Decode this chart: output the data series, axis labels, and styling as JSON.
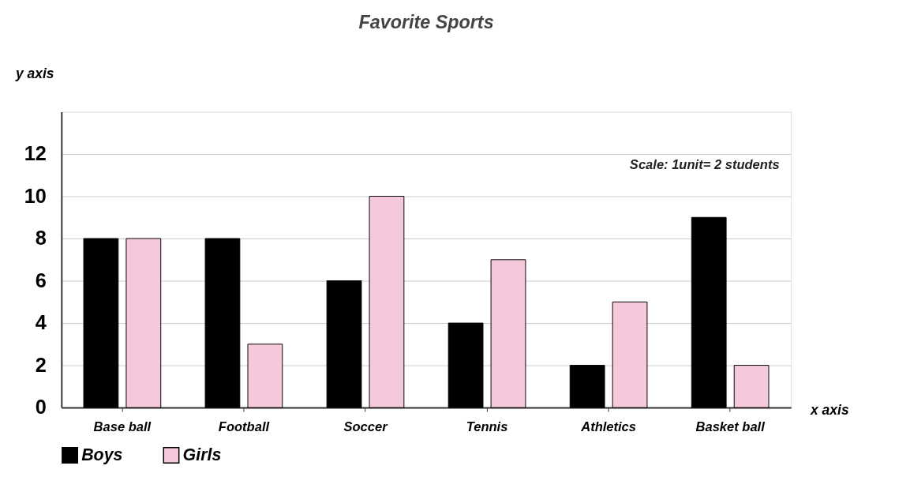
{
  "chart_data": {
    "type": "bar",
    "title": "Favorite Sports",
    "xlabel": "x axis",
    "ylabel": "y axis",
    "categories": [
      "Base ball",
      "Football",
      "Soccer",
      "Tennis",
      "Athletics",
      "Basket ball"
    ],
    "series": [
      {
        "name": "Boys",
        "color": "#000000",
        "values": [
          8,
          8,
          6,
          4,
          2,
          9
        ]
      },
      {
        "name": "Girls",
        "color": "#f5c8dc",
        "values": [
          8,
          3,
          10,
          7,
          5,
          2
        ]
      }
    ],
    "ylim": [
      0,
      14
    ],
    "yticks": [
      0,
      2,
      4,
      6,
      8,
      10,
      12
    ],
    "grid": "y",
    "legend": "bottom",
    "annotations": [
      "Scale: 1unit= 2 students"
    ]
  }
}
